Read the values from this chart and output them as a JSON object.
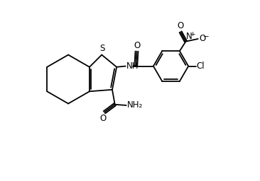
{
  "bg_color": "#ffffff",
  "line_color": "#000000",
  "lw": 1.3,
  "fs": 8.5,
  "xlim": [
    0,
    11
  ],
  "ylim": [
    0,
    8
  ],
  "figsize": [
    3.66,
    2.56
  ],
  "dpi": 100
}
